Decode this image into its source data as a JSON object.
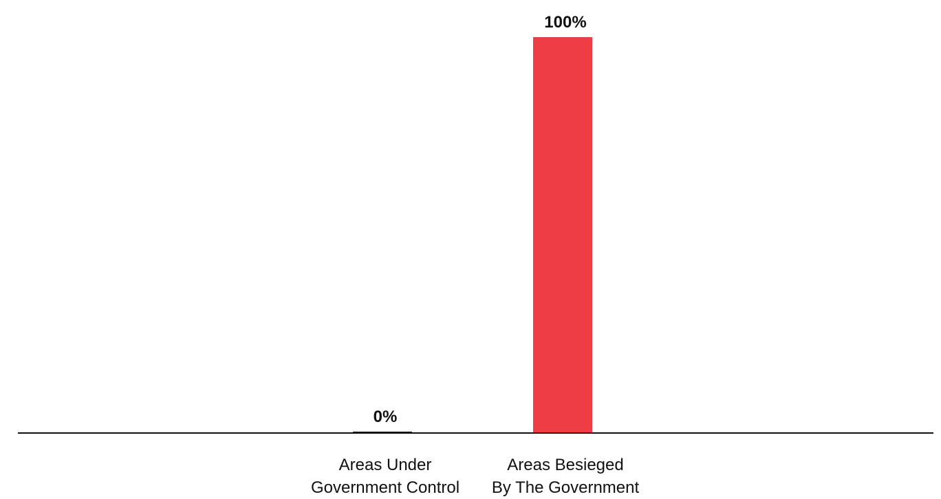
{
  "chart_data": {
    "type": "bar",
    "categories": [
      [
        "Areas Under",
        "Government Control"
      ],
      [
        "Areas Besieged",
        "By The Government"
      ]
    ],
    "values": [
      0,
      100
    ],
    "value_labels": [
      "0%",
      "100%"
    ],
    "ylim": [
      0,
      100
    ],
    "grid": false,
    "legend": "none",
    "colors": {
      "bars": [
        "#111111",
        "#ee3d45"
      ],
      "axis": "#111111",
      "text": "#111111",
      "background": "#ffffff"
    }
  }
}
